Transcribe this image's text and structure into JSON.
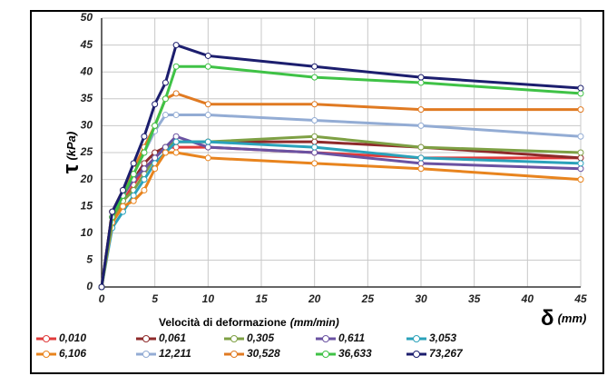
{
  "chart_data": {
    "type": "line",
    "ylabel_symbol": "τ",
    "ylabel_unit": "(kPa)",
    "xlabel_symbol": "δ",
    "xlabel_unit": "(mm)",
    "legend_title": "Velocità di deformazione",
    "legend_title_unit": "(mm/min)",
    "x": [
      0,
      1,
      2,
      3,
      4,
      5,
      6,
      7,
      10,
      20,
      30,
      45
    ],
    "series": [
      {
        "name": "0,010",
        "color": "#e03a3a",
        "values": [
          0,
          13,
          16,
          19,
          22,
          24,
          26,
          26,
          26,
          25,
          24,
          24
        ]
      },
      {
        "name": "0,061",
        "color": "#8e2a2a",
        "values": [
          0,
          14,
          17,
          20,
          23,
          25,
          26,
          27,
          27,
          27,
          26,
          24
        ]
      },
      {
        "name": "0,305",
        "color": "#7ea044",
        "values": [
          0,
          12,
          16,
          18,
          21,
          24,
          26,
          27,
          27,
          28,
          26,
          25
        ]
      },
      {
        "name": "0,611",
        "color": "#6a52a2",
        "values": [
          0,
          13,
          17,
          20,
          22,
          24,
          26,
          28,
          26,
          25,
          23,
          22
        ]
      },
      {
        "name": "3,053",
        "color": "#2aa2ba",
        "values": [
          0,
          11,
          14,
          17,
          20,
          23,
          25,
          27,
          27,
          26,
          24,
          23
        ]
      },
      {
        "name": "6,106",
        "color": "#e8841e",
        "values": [
          0,
          12,
          15,
          16,
          18,
          22,
          25,
          25,
          24,
          23,
          22,
          20
        ]
      },
      {
        "name": "12,211",
        "color": "#93acd4",
        "values": [
          0,
          14,
          18,
          22,
          25,
          29,
          32,
          32,
          32,
          31,
          30,
          28
        ]
      },
      {
        "name": "30,528",
        "color": "#e07a22",
        "values": [
          0,
          14,
          18,
          22,
          26,
          30,
          35,
          36,
          34,
          34,
          33,
          33
        ]
      },
      {
        "name": "36,633",
        "color": "#3fc246",
        "values": [
          0,
          13,
          17,
          21,
          25,
          30,
          35,
          41,
          41,
          39,
          38,
          36
        ]
      },
      {
        "name": "73,267",
        "color": "#1c1e6e",
        "values": [
          0,
          14,
          18,
          23,
          28,
          34,
          38,
          45,
          43,
          41,
          39,
          37
        ]
      }
    ],
    "xlim": [
      0,
      45
    ],
    "xticks": [
      0,
      5,
      10,
      15,
      20,
      25,
      30,
      35,
      40,
      45
    ],
    "ylim": [
      0,
      50
    ],
    "yticks": [
      0,
      5,
      10,
      15,
      20,
      25,
      30,
      35,
      40,
      45,
      50
    ],
    "grid": true
  }
}
